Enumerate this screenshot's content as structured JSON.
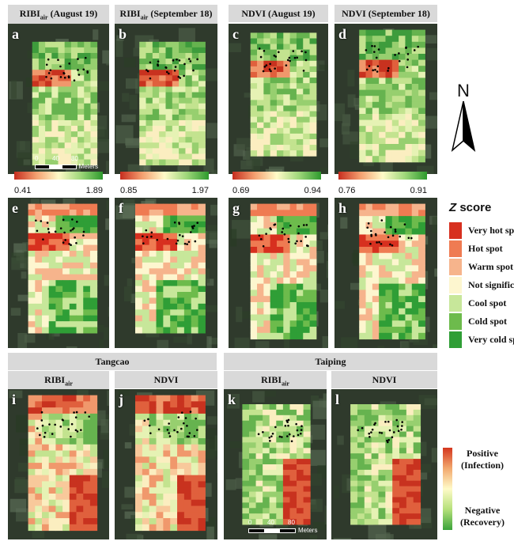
{
  "headers": {
    "row1": [
      {
        "main": "RIBI",
        "sub": "air",
        "tail": " (August 19)"
      },
      {
        "main": "RIBI",
        "sub": "air",
        "tail": " (September 18)"
      },
      {
        "main": "NDVI (August 19)",
        "sub": "",
        "tail": ""
      },
      {
        "main": "NDVI (September 18)",
        "sub": "",
        "tail": ""
      }
    ],
    "site_tangcao": "Tangcao",
    "site_taiping": "Taiping",
    "row3": [
      {
        "main": "RIBI",
        "sub": "air",
        "tail": ""
      },
      {
        "main": "NDVI",
        "sub": "",
        "tail": ""
      },
      {
        "main": "RIBI",
        "sub": "air",
        "tail": ""
      },
      {
        "main": "NDVI",
        "sub": "",
        "tail": ""
      }
    ]
  },
  "panel_letters": [
    "a",
    "b",
    "c",
    "d",
    "e",
    "f",
    "g",
    "h",
    "i",
    "j",
    "k",
    "l"
  ],
  "colorbars": [
    {
      "min": "0.41",
      "max": "1.89"
    },
    {
      "min": "0.85",
      "max": "1.97"
    },
    {
      "min": "0.69",
      "max": "0.94"
    },
    {
      "min": "0.76",
      "max": "0.91"
    }
  ],
  "scalebar_a": {
    "t0": "0",
    "t1": "40",
    "t2": "80",
    "unit": "Meters"
  },
  "scalebar_k": {
    "t0": "0",
    "t1": "40",
    "t2": "80",
    "unit": "Meters"
  },
  "north_label": "N",
  "zscore": {
    "title_italic": "Z",
    "title_rest": " score",
    "items": [
      {
        "label": "Very hot spot",
        "color": "#d7301f"
      },
      {
        "label": "Hot spot",
        "color": "#ef7b52"
      },
      {
        "label": "Warm spot",
        "color": "#f6b48c"
      },
      {
        "label": "Not significant",
        "color": "#fdf6cf"
      },
      {
        "label": "Cool spot",
        "color": "#c7e79a"
      },
      {
        "label": "Cold spot",
        "color": "#6dbb4c"
      },
      {
        "label": "Very cold spot",
        "color": "#2f9e36"
      }
    ]
  },
  "infection_legend": {
    "pos_line1": "Positive",
    "pos_line2": "(Infection)",
    "neg_line1": "Negative",
    "neg_line2": "(Recovery)"
  }
}
